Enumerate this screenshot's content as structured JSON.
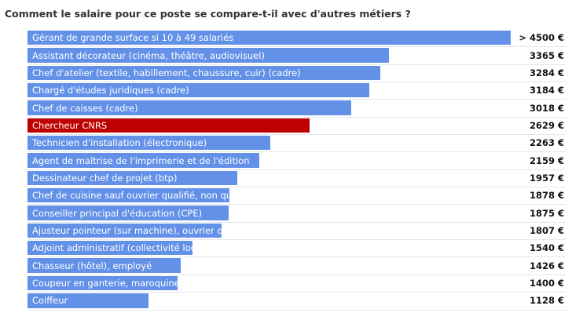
{
  "chart_data": {
    "type": "bar",
    "orientation": "horizontal",
    "title": "Comment le salaire pour ce poste se compare-t-il avec d'autres métiers ?",
    "xlabel": "",
    "ylabel": "",
    "unit": "€",
    "grid": false,
    "colors": {
      "default": "#6391e8",
      "highlight": "#bf0000"
    },
    "categories": [
      "Gérant de grande surface si 10 à 49 salariés",
      "Assistant décorateur (cinéma, théâtre, audiovisuel)",
      "Chef d'atelier (textile, habillement, chaussure, cuir) (cadre)",
      "Chargé d'études juridiques (cadre)",
      "Chef de caisses (cadre)",
      "Chercheur CNRS",
      "Technicien d'installation (électronique)",
      "Agent de maîtrise de l'imprimerie et de l'édition",
      "Dessinateur chef de projet (btp)",
      "Chef de cuisine sauf ouvrier qualifié, non qualifié (cadre)",
      "Conseiller principal d'éducation (CPE)",
      "Ajusteur pointeur (sur machine), ouvrier qualifié",
      "Adjoint administratif (collectivité locale)",
      "Chasseur (hôtel), employé",
      "Coupeur en ganterie, maroquinerie (sauf main), ouvrier qualifié",
      "Coiffeur"
    ],
    "values": [
      4500,
      3365,
      3284,
      3184,
      3018,
      2629,
      2263,
      2159,
      1957,
      1878,
      1875,
      1807,
      1540,
      1426,
      1400,
      1128
    ],
    "value_labels": [
      "> 4500 €",
      "3365 €",
      "3284 €",
      "3184 €",
      "3018 €",
      "2629 €",
      "2263 €",
      "2159 €",
      "1957 €",
      "1878 €",
      "1875 €",
      "1807 €",
      "1540 €",
      "1426 €",
      "1400 €",
      "1128 €"
    ],
    "highlight": "Chercheur CNRS",
    "xlim": [
      0,
      5000
    ]
  }
}
